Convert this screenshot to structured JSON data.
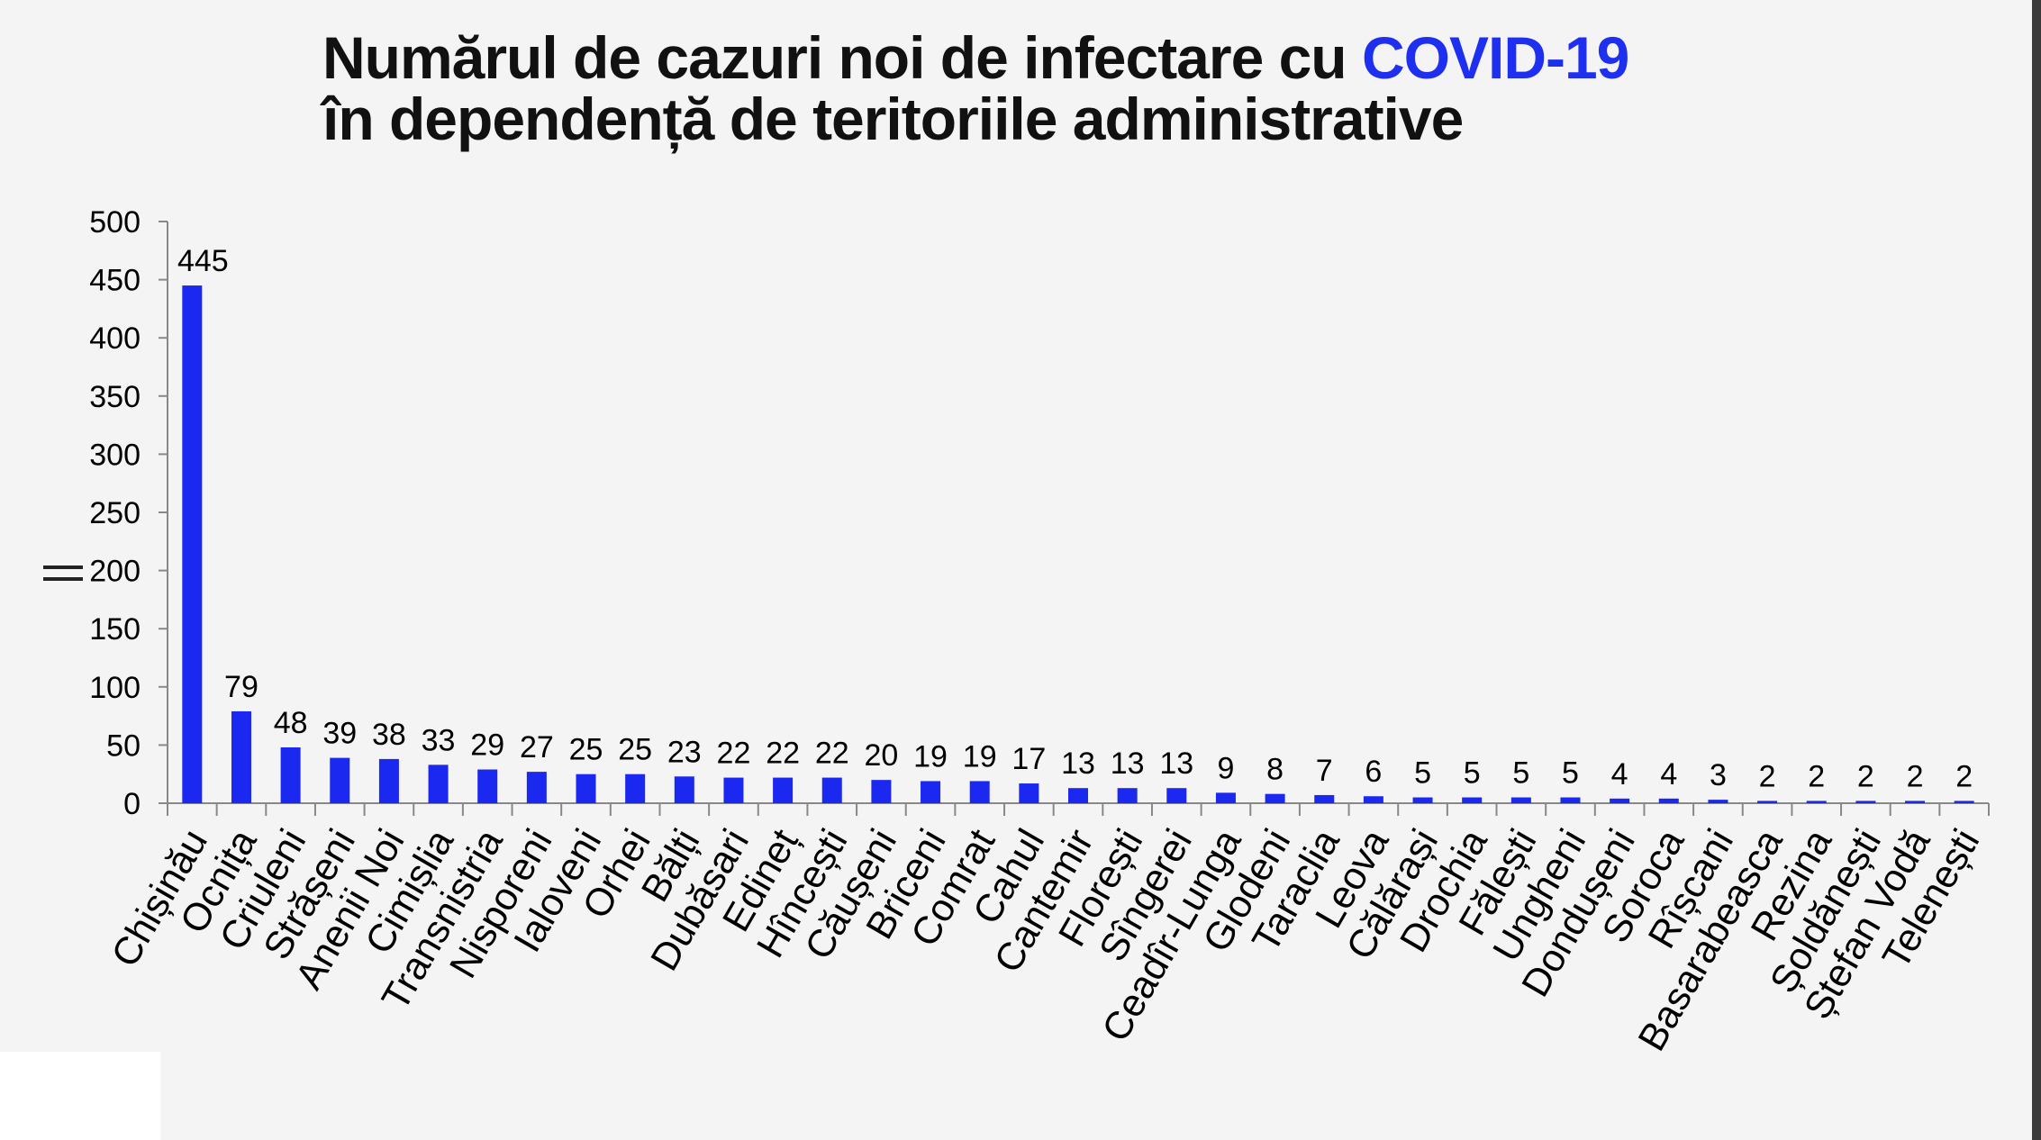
{
  "title": {
    "line1_prefix": "Numărul de cazuri noi de infectare cu ",
    "line1_highlight": "COVID-19",
    "line2": "în dependență de teritoriile administrative"
  },
  "colors": {
    "bar": "#1a28f0",
    "highlight": "#1f2ff0",
    "axis": "#888888"
  },
  "chart_data": {
    "type": "bar",
    "title": "Numărul de cazuri noi de infectare cu COVID-19 în dependență de teritoriile administrative",
    "xlabel": "",
    "ylabel": "",
    "ylim": [
      0,
      500
    ],
    "yticks": [
      0,
      50,
      100,
      150,
      200,
      250,
      300,
      350,
      400,
      450,
      500
    ],
    "grid": false,
    "categories": [
      "Chișinău",
      "Ocnița",
      "Criuleni",
      "Strășeni",
      "Anenii Noi",
      "Cimișlia",
      "Transnistria",
      "Nisporeni",
      "Ialoveni",
      "Orhei",
      "Bălți",
      "Dubăsari",
      "Edineț",
      "Hîncești",
      "Căușeni",
      "Briceni",
      "Comrat",
      "Cahul",
      "Cantemir",
      "Florești",
      "Sîngerei",
      "Ceadîr-Lunga",
      "Glodeni",
      "Taraclia",
      "Leova",
      "Călărași",
      "Drochia",
      "Fălești",
      "Ungheni",
      "Dondușeni",
      "Soroca",
      "Rîșcani",
      "Basarabeasca",
      "Rezina",
      "Șoldănești",
      "Ștefan Vodă",
      "Telenești"
    ],
    "values": [
      445,
      79,
      48,
      39,
      38,
      33,
      29,
      27,
      25,
      25,
      23,
      22,
      22,
      22,
      20,
      19,
      19,
      17,
      13,
      13,
      13,
      9,
      8,
      7,
      6,
      5,
      5,
      5,
      5,
      4,
      4,
      3,
      2,
      2,
      2,
      2,
      2
    ]
  }
}
